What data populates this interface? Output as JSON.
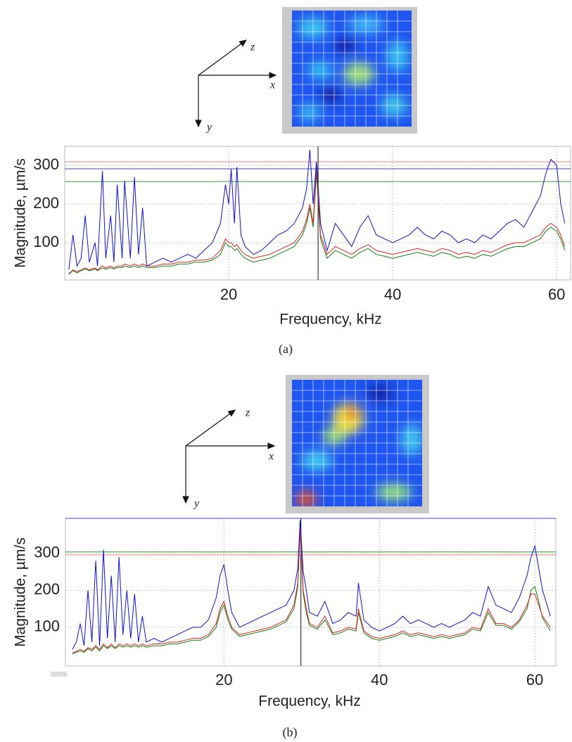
{
  "chart_data": [
    {
      "type": "line",
      "caption": "(a)",
      "x_label": "Frequency, kHz",
      "y_label": "Magnitude, µm/s",
      "inset_axes": {
        "x": "x",
        "y": "y",
        "z": "z"
      },
      "xlim": [
        0,
        61.7
      ],
      "ylim": [
        4,
        349
      ],
      "xticks": [
        20,
        40,
        60
      ],
      "yticks": [
        100,
        200,
        300
      ],
      "grid": true,
      "hlines": [
        {
          "value": 309,
          "color": "#f08080"
        },
        {
          "value": 291,
          "color": "#4040e0"
        },
        {
          "value": 258,
          "color": "#2ca02c"
        }
      ],
      "vline": 30.9,
      "x": [
        0.5,
        1,
        1.5,
        2,
        2.5,
        3,
        3.7,
        4,
        4.6,
        5,
        5.6,
        6,
        6.4,
        7,
        7.3,
        8,
        8.5,
        9,
        9.5,
        10,
        11,
        12,
        13,
        14,
        15,
        16,
        17,
        18,
        19,
        19.6,
        20,
        20.3,
        20.7,
        21,
        21.5,
        22,
        23,
        24,
        25,
        26,
        27,
        28,
        29,
        29.5,
        29.9,
        30.3,
        30.7,
        31.2,
        32,
        33,
        34,
        35,
        36,
        37,
        38,
        39,
        40,
        41,
        42,
        43,
        44,
        45,
        46,
        47,
        48,
        49,
        50,
        51,
        52,
        53,
        54,
        55,
        56,
        57,
        58,
        58.7,
        59.3,
        60,
        60.5,
        61
      ],
      "series": [
        {
          "color": "#1010d0",
          "values": [
            30,
            120,
            40,
            60,
            170,
            50,
            100,
            40,
            285,
            60,
            170,
            50,
            250,
            60,
            260,
            60,
            270,
            70,
            190,
            40,
            50,
            60,
            50,
            60,
            70,
            60,
            80,
            100,
            150,
            250,
            200,
            290,
            150,
            295,
            120,
            90,
            70,
            80,
            100,
            120,
            130,
            150,
            190,
            240,
            340,
            200,
            310,
            150,
            80,
            150,
            120,
            90,
            140,
            170,
            120,
            110,
            100,
            110,
            120,
            140,
            120,
            110,
            130,
            120,
            100,
            110,
            100,
            120,
            110,
            130,
            150,
            160,
            140,
            180,
            220,
            280,
            315,
            300,
            200,
            150
          ]
        },
        {
          "color": "#e02020",
          "values": [
            20,
            30,
            25,
            30,
            35,
            30,
            35,
            30,
            40,
            35,
            40,
            35,
            40,
            40,
            45,
            40,
            45,
            40,
            45,
            40,
            40,
            45,
            45,
            50,
            50,
            55,
            55,
            60,
            80,
            110,
            100,
            100,
            90,
            95,
            80,
            70,
            60,
            65,
            70,
            80,
            90,
            100,
            130,
            160,
            200,
            150,
            300,
            120,
            70,
            90,
            80,
            70,
            85,
            95,
            80,
            75,
            70,
            75,
            80,
            85,
            80,
            75,
            85,
            80,
            70,
            75,
            70,
            80,
            75,
            85,
            95,
            100,
            100,
            110,
            120,
            140,
            150,
            140,
            120,
            90
          ]
        },
        {
          "color": "#108010",
          "values": [
            18,
            28,
            22,
            28,
            32,
            28,
            32,
            28,
            35,
            32,
            36,
            32,
            36,
            36,
            40,
            36,
            40,
            36,
            40,
            36,
            36,
            40,
            40,
            45,
            45,
            50,
            50,
            55,
            70,
            100,
            90,
            90,
            80,
            85,
            70,
            60,
            50,
            55,
            60,
            70,
            80,
            90,
            120,
            150,
            190,
            140,
            280,
            110,
            60,
            80,
            70,
            60,
            75,
            85,
            70,
            65,
            60,
            65,
            70,
            75,
            70,
            65,
            75,
            70,
            60,
            65,
            60,
            70,
            65,
            75,
            85,
            90,
            90,
            100,
            110,
            130,
            140,
            130,
            110,
            80
          ]
        }
      ]
    },
    {
      "type": "line",
      "caption": "(b)",
      "x_label": "Frequency, kHz",
      "y_label": "Magnitude, µm/s",
      "inset_axes": {
        "x": "x",
        "y": "y",
        "z": "z"
      },
      "xlim": [
        -0.4,
        62.7
      ],
      "ylim": [
        -5,
        395
      ],
      "xticks": [
        20,
        40,
        60
      ],
      "yticks": [
        100,
        200,
        300
      ],
      "grid": true,
      "hlines": [
        {
          "value": 395,
          "color": "#4040e0"
        },
        {
          "value": 304,
          "color": "#2ca02c"
        },
        {
          "value": 296,
          "color": "#f08080"
        }
      ],
      "vline": 29.9,
      "x": [
        0.5,
        1,
        1.5,
        2,
        2.5,
        3,
        3.5,
        4,
        4.5,
        5,
        5.5,
        6,
        6.5,
        7,
        7.5,
        8,
        8.5,
        9,
        9.5,
        10,
        11,
        12,
        13,
        14,
        15,
        16,
        17,
        18,
        19,
        19.5,
        20,
        20.5,
        21,
        22,
        23,
        24,
        25,
        26,
        27,
        28,
        29,
        29.5,
        29.8,
        30.2,
        30.6,
        31,
        32,
        33,
        34,
        35,
        36,
        37,
        37.3,
        38,
        39,
        40,
        41,
        42,
        43,
        44,
        45,
        46,
        47,
        48,
        49,
        50,
        51,
        52,
        53,
        54,
        55,
        56,
        57,
        58,
        59,
        59.5,
        60,
        60.5,
        61,
        62
      ],
      "series": [
        {
          "color": "#1010d0",
          "values": [
            40,
            60,
            110,
            50,
            200,
            60,
            280,
            50,
            310,
            70,
            240,
            60,
            290,
            80,
            200,
            70,
            190,
            60,
            130,
            60,
            70,
            60,
            70,
            80,
            90,
            100,
            100,
            120,
            180,
            240,
            270,
            200,
            140,
            100,
            110,
            120,
            130,
            140,
            150,
            160,
            200,
            260,
            390,
            250,
            200,
            140,
            130,
            170,
            110,
            120,
            140,
            130,
            220,
            120,
            100,
            90,
            100,
            110,
            130,
            110,
            120,
            110,
            100,
            110,
            100,
            110,
            120,
            140,
            130,
            210,
            160,
            150,
            140,
            180,
            240,
            290,
            320,
            260,
            200,
            130
          ]
        },
        {
          "color": "#e02020",
          "values": [
            30,
            35,
            40,
            35,
            45,
            40,
            50,
            40,
            55,
            45,
            55,
            45,
            55,
            50,
            55,
            50,
            55,
            50,
            55,
            50,
            55,
            55,
            60,
            60,
            65,
            70,
            70,
            80,
            110,
            150,
            170,
            130,
            100,
            80,
            85,
            90,
            95,
            100,
            110,
            120,
            160,
            220,
            370,
            200,
            150,
            110,
            100,
            130,
            85,
            90,
            100,
            95,
            150,
            90,
            75,
            70,
            75,
            80,
            90,
            80,
            85,
            80,
            75,
            80,
            75,
            80,
            85,
            100,
            95,
            150,
            110,
            110,
            100,
            120,
            160,
            190,
            190,
            160,
            130,
            100
          ]
        },
        {
          "color": "#108010",
          "values": [
            28,
            32,
            36,
            32,
            42,
            36,
            46,
            36,
            50,
            42,
            50,
            42,
            50,
            46,
            50,
            46,
            50,
            46,
            50,
            46,
            50,
            50,
            55,
            55,
            60,
            65,
            65,
            75,
            100,
            140,
            160,
            120,
            95,
            75,
            80,
            85,
            90,
            95,
            105,
            115,
            150,
            210,
            360,
            190,
            140,
            105,
            95,
            120,
            80,
            85,
            95,
            90,
            140,
            85,
            70,
            65,
            70,
            75,
            85,
            75,
            80,
            75,
            70,
            75,
            70,
            75,
            80,
            95,
            90,
            140,
            105,
            105,
            95,
            115,
            150,
            200,
            210,
            170,
            125,
            90
          ]
        }
      ]
    }
  ]
}
